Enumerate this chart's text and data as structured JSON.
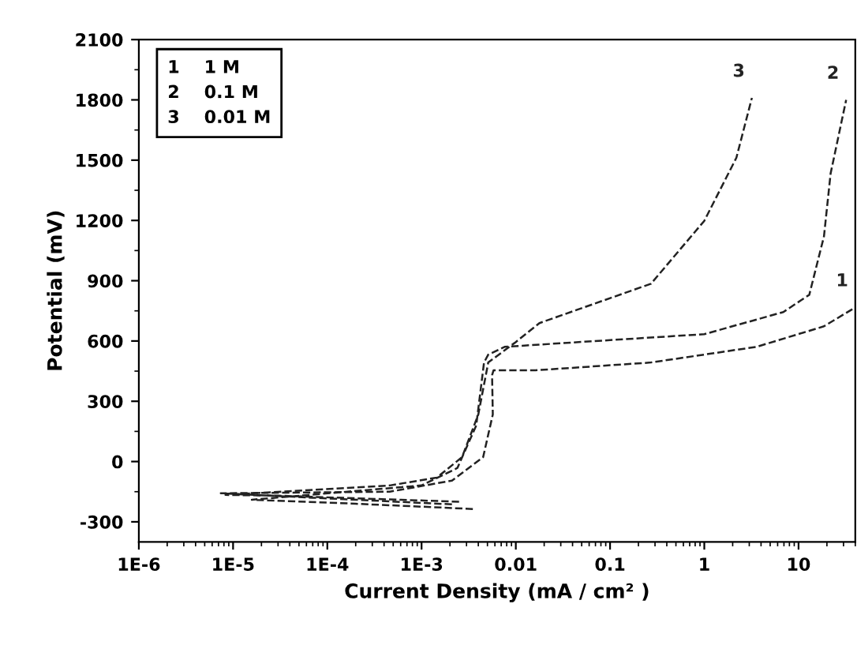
{
  "chart_data": {
    "type": "line",
    "xlabel": "Current Density (mA / cm² )",
    "ylabel": "Potential (mV)",
    "log": "x",
    "xlim": [
      1e-06,
      40
    ],
    "ylim": [
      -400,
      2100
    ],
    "xticks": [
      {
        "value": 1e-06,
        "label": "1E-6"
      },
      {
        "value": 1e-05,
        "label": "1E-5"
      },
      {
        "value": 0.0001,
        "label": "1E-4"
      },
      {
        "value": 0.001,
        "label": "1E-3"
      },
      0.01,
      0.1,
      1,
      10
    ],
    "yticks": [
      -300,
      0,
      300,
      600,
      900,
      1200,
      1500,
      1800,
      2100
    ],
    "grid": false,
    "line_style": "dashed",
    "marker": "none",
    "series": [
      {
        "name": "1",
        "color": "#222222",
        "x": [
          0.0021,
          7e-05,
          7.4e-06,
          0.00046,
          0.0021,
          0.0045,
          0.0057,
          0.0056,
          0.0058,
          0.0076,
          0.0162,
          0.272,
          3.6,
          18.6,
          40
        ],
        "values": [
          -213,
          -180,
          -158,
          -150,
          -95,
          22,
          234,
          430,
          454,
          454,
          454,
          493,
          571,
          673,
          767
        ]
      },
      {
        "name": "2",
        "color": "#222222",
        "x": [
          0.0035,
          0.0002,
          1.58e-05,
          0.001,
          0.0024,
          0.0038,
          0.0046,
          0.0051,
          0.0076,
          1,
          6.9,
          13,
          18.6,
          21.9,
          32
        ],
        "values": [
          -236,
          -210,
          -190,
          -119,
          -32,
          179,
          493,
          532,
          571,
          634,
          744,
          830,
          1120,
          1434,
          1800
        ]
      },
      {
        "name": "3",
        "color": "#222222",
        "x": [
          0.0025,
          3e-05,
          8.3e-06,
          0.00046,
          0.00145,
          0.00269,
          0.004,
          0.0051,
          0.01,
          0.0178,
          0.272,
          1,
          2.19,
          3.2
        ],
        "values": [
          -200,
          -170,
          -166,
          -119,
          -80,
          22,
          234,
          493,
          595,
          689,
          885,
          1198,
          1512,
          1810
        ]
      }
    ],
    "annotations": [
      "1    1 M",
      "2    0.1 M",
      "3    0.01 M"
    ]
  }
}
